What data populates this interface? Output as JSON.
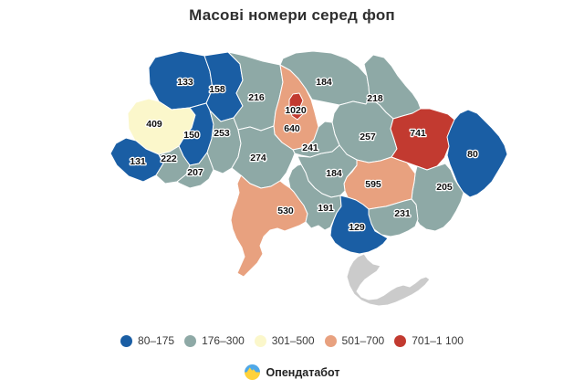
{
  "title": "Масові номери серед фоп",
  "legend": {
    "buckets": [
      {
        "label": "80–175",
        "color": "#1A5EA4"
      },
      {
        "label": "176–300",
        "color": "#8EA9A6"
      },
      {
        "label": "301–500",
        "color": "#FBF7CB"
      },
      {
        "label": "501–700",
        "color": "#E8A17F"
      },
      {
        "label": "701–1 100",
        "color": "#C23A30"
      }
    ]
  },
  "map": {
    "no_data_color": "#CBCBCB",
    "border_color": "#FFFFFF",
    "value_label_color": "#111111"
  },
  "footer": {
    "brand": "Опендатабот",
    "logo_blue": "#4FA8E8",
    "logo_yellow": "#FFD23B"
  },
  "chart_data": {
    "type": "heatmap",
    "map_type": "choropleth-ukraine-regions",
    "title": "Масові номери серед фоп",
    "legend_position": "bottom",
    "buckets": [
      "80–175",
      "176–300",
      "301–500",
      "501–700",
      "701–1 100"
    ],
    "regions": [
      {
        "region": "volyn",
        "value": 133,
        "bucket": "80–175"
      },
      {
        "region": "rivne",
        "value": 158,
        "bucket": "80–175"
      },
      {
        "region": "lviv",
        "value": 409,
        "bucket": "301–500"
      },
      {
        "region": "ternopil",
        "value": 150,
        "bucket": "80–175"
      },
      {
        "region": "khmelnytskyi",
        "value": 253,
        "bucket": "176–300"
      },
      {
        "region": "zakarpattia",
        "value": 131,
        "bucket": "80–175"
      },
      {
        "region": "ivano-frankivsk",
        "value": 222,
        "bucket": "176–300"
      },
      {
        "region": "chernivtsi",
        "value": 207,
        "bucket": "176–300"
      },
      {
        "region": "zhytomyr",
        "value": 216,
        "bucket": "176–300"
      },
      {
        "region": "kyiv-oblast",
        "value": 640,
        "bucket": "501–700"
      },
      {
        "region": "kyiv-city",
        "value": 1020,
        "bucket": "701–1 100"
      },
      {
        "region": "chernihiv",
        "value": 184,
        "bucket": "176–300"
      },
      {
        "region": "sumy",
        "value": 218,
        "bucket": "176–300"
      },
      {
        "region": "poltava",
        "value": 257,
        "bucket": "176–300"
      },
      {
        "region": "kharkiv",
        "value": 741,
        "bucket": "701–1 100"
      },
      {
        "region": "luhansk",
        "value": 80,
        "bucket": "80–175"
      },
      {
        "region": "donetsk",
        "value": 205,
        "bucket": "176–300"
      },
      {
        "region": "dnipropetrovsk",
        "value": 595,
        "bucket": "501–700"
      },
      {
        "region": "zaporizhzhia",
        "value": 231,
        "bucket": "176–300"
      },
      {
        "region": "kirovohrad",
        "value": 184,
        "bucket": "176–300"
      },
      {
        "region": "cherkasy",
        "value": 241,
        "bucket": "176–300"
      },
      {
        "region": "vinnytsia",
        "value": 274,
        "bucket": "176–300"
      },
      {
        "region": "odesa",
        "value": 530,
        "bucket": "501–700"
      },
      {
        "region": "mykolaiv",
        "value": 191,
        "bucket": "176–300"
      },
      {
        "region": "kherson",
        "value": 129,
        "bucket": "80–175"
      },
      {
        "region": "crimea",
        "value": null,
        "bucket": "no-data"
      }
    ]
  }
}
